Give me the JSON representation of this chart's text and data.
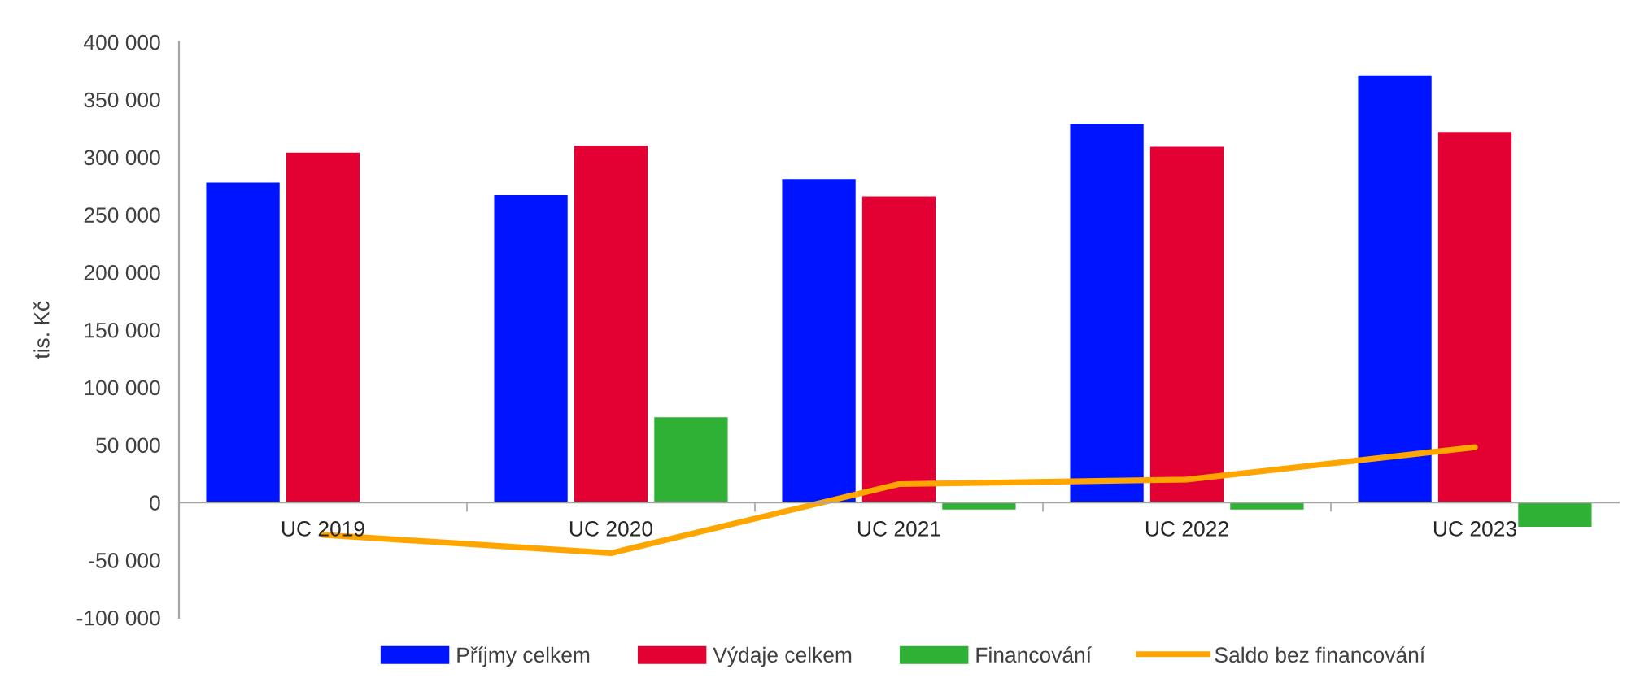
{
  "chart_data": {
    "type": "bar",
    "categories": [
      "UC 2019",
      "UC 2020",
      "UC 2021",
      "UC 2022",
      "UC 2023"
    ],
    "ylabel": "tis. Kč",
    "ylim": [
      -100000,
      400000
    ],
    "yticks": [
      {
        "value": -100000,
        "label": "-100 000"
      },
      {
        "value": -50000,
        "label": "-50 000"
      },
      0,
      {
        "value": 50000,
        "label": "50 000"
      },
      {
        "value": 100000,
        "label": "100 000"
      },
      {
        "value": 150000,
        "label": "150 000"
      },
      {
        "value": 200000,
        "label": "200 000"
      },
      {
        "value": 250000,
        "label": "250 000"
      },
      {
        "value": 300000,
        "label": "300 000"
      },
      {
        "value": 350000,
        "label": "350 000"
      },
      {
        "value": 400000,
        "label": "400 000"
      }
    ],
    "legend": "bottom",
    "series": [
      {
        "name": "Příjmy celkem",
        "color": "#0015ff",
        "values": [
          278000,
          267000,
          281000,
          329000,
          371000
        ]
      },
      {
        "name": "Výdaje celkem",
        "color": "#e30032",
        "values": [
          304000,
          310000,
          266000,
          309000,
          322000
        ]
      },
      {
        "name": "Financování",
        "color": "#2eb135",
        "values": [
          null,
          74000,
          -6000,
          -6000,
          -21000
        ]
      },
      {
        "name": "Saldo bez financování",
        "type": "line",
        "color": "#ffa500",
        "values": [
          -28000,
          -44000,
          16000,
          20000,
          48000
        ]
      }
    ]
  }
}
